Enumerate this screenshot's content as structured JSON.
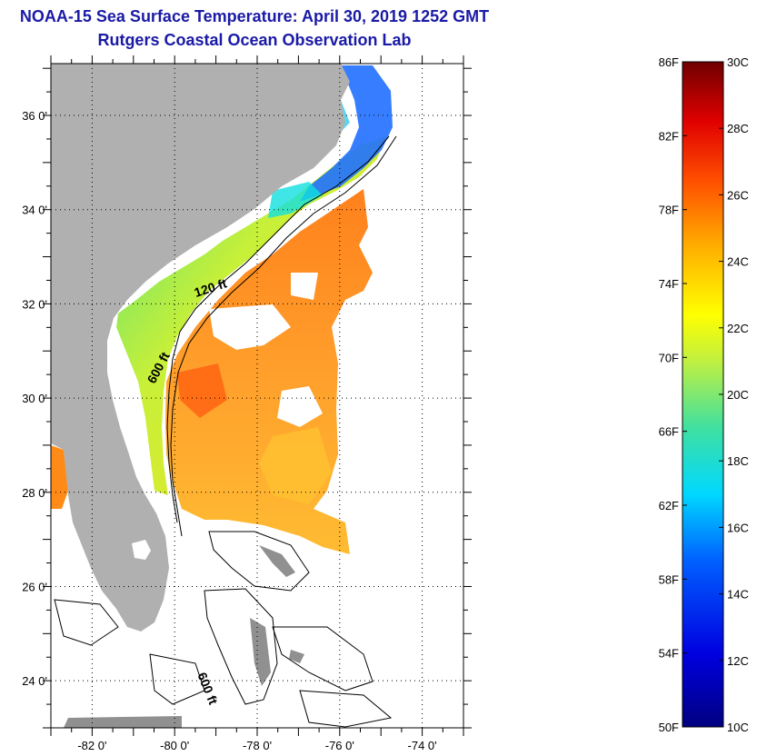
{
  "title": {
    "line1": "NOAA-15 Sea Surface Temperature:  April 30, 2019 1252 GMT",
    "line2": "Rutgers Coastal Ocean Observation Lab"
  },
  "map": {
    "lon_range": [
      -83,
      -73
    ],
    "lat_range": [
      23,
      37.1
    ],
    "lon_ticks": [
      {
        "value": -82,
        "label": "-82 0'"
      },
      {
        "value": -80,
        "label": "-80 0'"
      },
      {
        "value": -78,
        "label": "-78 0'"
      },
      {
        "value": -76,
        "label": "-76 0'"
      },
      {
        "value": -74,
        "label": "-74 0'"
      }
    ],
    "lat_ticks": [
      {
        "value": 36,
        "label": "36 0'"
      },
      {
        "value": 34,
        "label": "34 0'"
      },
      {
        "value": 32,
        "label": "32 0'"
      },
      {
        "value": 30,
        "label": "30 0'"
      },
      {
        "value": 28,
        "label": "28 0'"
      },
      {
        "value": 26,
        "label": "26 0'"
      },
      {
        "value": 24,
        "label": "24 0'"
      }
    ],
    "contour_labels": [
      {
        "text": "120 ft",
        "lon": -79.1,
        "lat": 32.25
      },
      {
        "text": "600 ft",
        "lon": -80.3,
        "lat": 30.6
      },
      {
        "text": "600 ft",
        "lon": -79.3,
        "lat": 23.8
      }
    ],
    "colors": {
      "land": "#b0b0b0",
      "gridline": "#000000"
    }
  },
  "colorbar": {
    "fahrenheit_labels": [
      "86F",
      "82F",
      "78F",
      "74F",
      "70F",
      "66F",
      "62F",
      "58F",
      "54F",
      "50F"
    ],
    "celsius_labels": [
      "30C",
      "28C",
      "26C",
      "24C",
      "22C",
      "20C",
      "18C",
      "16C",
      "14C",
      "12C",
      "10C"
    ],
    "range_f": [
      50,
      86
    ],
    "range_c": [
      10,
      30
    ]
  }
}
